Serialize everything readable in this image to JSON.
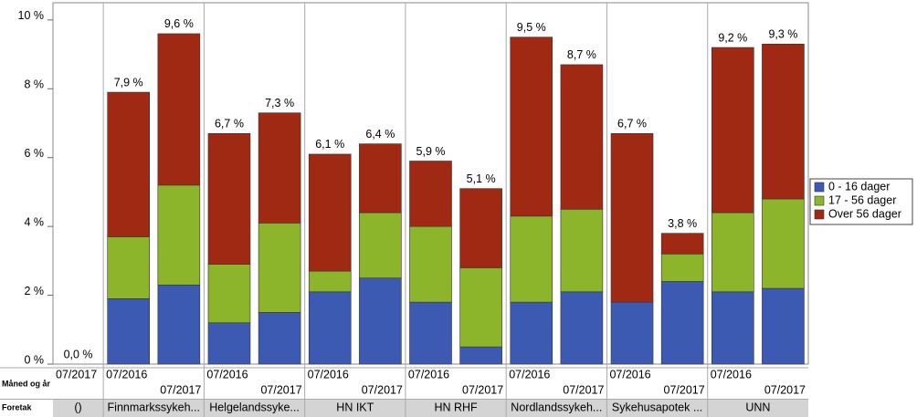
{
  "chart_data": {
    "type": "stacked-bar",
    "x_row_labels": [
      "Måned og år",
      "Foretak"
    ],
    "categories": [
      {
        "group": "()",
        "period": "07/2017"
      },
      {
        "group": "Finnmarkssykeh...",
        "period": "07/2016"
      },
      {
        "group": null,
        "period": "07/2017"
      },
      {
        "group": "Helgelandssyke...",
        "period": "07/2016"
      },
      {
        "group": null,
        "period": "07/2017"
      },
      {
        "group": "HN IKT",
        "period": "07/2016"
      },
      {
        "group": null,
        "period": "07/2017"
      },
      {
        "group": "HN RHF",
        "period": "07/2016"
      },
      {
        "group": null,
        "period": "07/2017"
      },
      {
        "group": "Nordlandssykeh...",
        "period": "07/2016"
      },
      {
        "group": null,
        "period": "07/2017"
      },
      {
        "group": "Sykehusapotek ...",
        "period": "07/2016"
      },
      {
        "group": null,
        "period": "07/2017"
      },
      {
        "group": "UNN",
        "period": "07/2016"
      },
      {
        "group": null,
        "period": "07/2017"
      }
    ],
    "series": [
      {
        "name": "0 - 16 dager",
        "color": "#3d5ab3",
        "values": [
          0,
          1.9,
          2.3,
          1.2,
          1.5,
          2.1,
          2.5,
          1.8,
          0.5,
          1.8,
          2.1,
          1.8,
          2.4,
          2.1,
          2.2
        ]
      },
      {
        "name": "17 - 56 dager",
        "color": "#8db52c",
        "values": [
          0,
          1.8,
          2.9,
          1.7,
          2.6,
          0.6,
          1.9,
          2.2,
          2.3,
          2.5,
          2.4,
          0,
          0.8,
          2.3,
          2.6
        ]
      },
      {
        "name": "Over 56 dager",
        "color": "#a02914",
        "values": [
          0,
          4.2,
          4.4,
          3.8,
          3.2,
          3.4,
          2.0,
          1.9,
          2.3,
          5.2,
          4.2,
          4.9,
          0.6,
          4.8,
          4.5
        ]
      }
    ],
    "totals": {
      "values": [
        0,
        7.9,
        9.6,
        6.7,
        7.3,
        6.1,
        6.4,
        5.9,
        5.1,
        9.5,
        8.7,
        6.7,
        3.8,
        9.2,
        9.3
      ],
      "value_labels": [
        "0,0 %",
        "7,9 %",
        "9,6 %",
        "6,7 %",
        "7,3 %",
        "6,1 %",
        "6,4 %",
        "5,9 %",
        "5,1 %",
        "9,5 %",
        "8,7 %",
        "6,7 %",
        "3,8 %",
        "9,2 %",
        "9,3 %"
      ]
    },
    "ylim": [
      0,
      10.5
    ],
    "yticks": [
      {
        "value": 0,
        "label": "0 %"
      },
      {
        "value": 2,
        "label": "2 %"
      },
      {
        "value": 4,
        "label": "4 %"
      },
      {
        "value": 6,
        "label": "6 %"
      },
      {
        "value": 8,
        "label": "8 %"
      },
      {
        "value": 10,
        "label": "10 %"
      }
    ],
    "legend": "right"
  }
}
